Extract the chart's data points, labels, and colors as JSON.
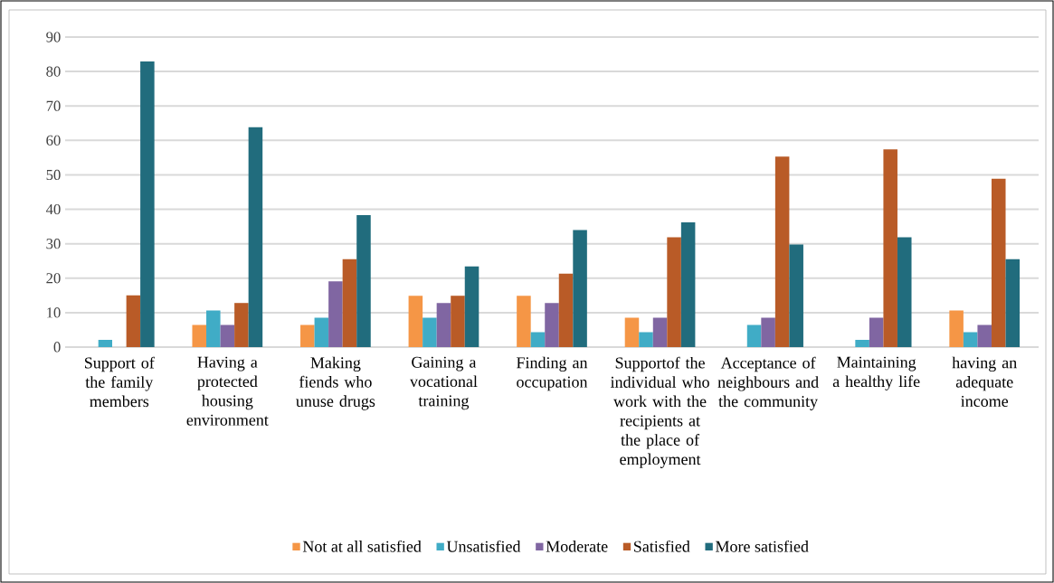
{
  "chart_data": {
    "type": "bar",
    "categories": [
      "Support of the family members",
      "Having a protected housing environment",
      "Making fiends who unuse drugs",
      "Gaining a vocational training",
      "Finding an occupation",
      "Supportof the individual who work with the recipients at the place of employment",
      "Acceptance of neighbours and the community",
      "Maintaining a healthy life",
      "having an adequate income"
    ],
    "series": [
      {
        "name": "Not at all satisfied",
        "color": "#f59646",
        "values": [
          0,
          6.4,
          6.4,
          14.9,
          14.9,
          8.5,
          0,
          0,
          10.6
        ]
      },
      {
        "name": "Unsatisfied",
        "color": "#40acc6",
        "values": [
          2.1,
          10.6,
          8.5,
          8.5,
          4.3,
          4.3,
          6.4,
          2.1,
          4.3
        ]
      },
      {
        "name": "Moderate",
        "color": "#8066a2",
        "values": [
          0,
          6.4,
          19.1,
          12.8,
          12.8,
          8.5,
          8.5,
          8.5,
          6.4
        ]
      },
      {
        "name": "Satisfied",
        "color": "#b95b27",
        "values": [
          15.0,
          12.8,
          25.5,
          14.9,
          21.3,
          31.9,
          55.3,
          57.4,
          48.9
        ]
      },
      {
        "name": "More satisfied",
        "color": "#216c7d",
        "values": [
          82.9,
          63.8,
          38.3,
          23.4,
          34.0,
          36.2,
          29.8,
          31.9,
          25.5
        ]
      }
    ],
    "ylim": [
      0,
      90
    ],
    "yticks": [
      0,
      10,
      20,
      30,
      40,
      50,
      60,
      70,
      80,
      90
    ],
    "grid": "y",
    "legend": "bottom"
  }
}
